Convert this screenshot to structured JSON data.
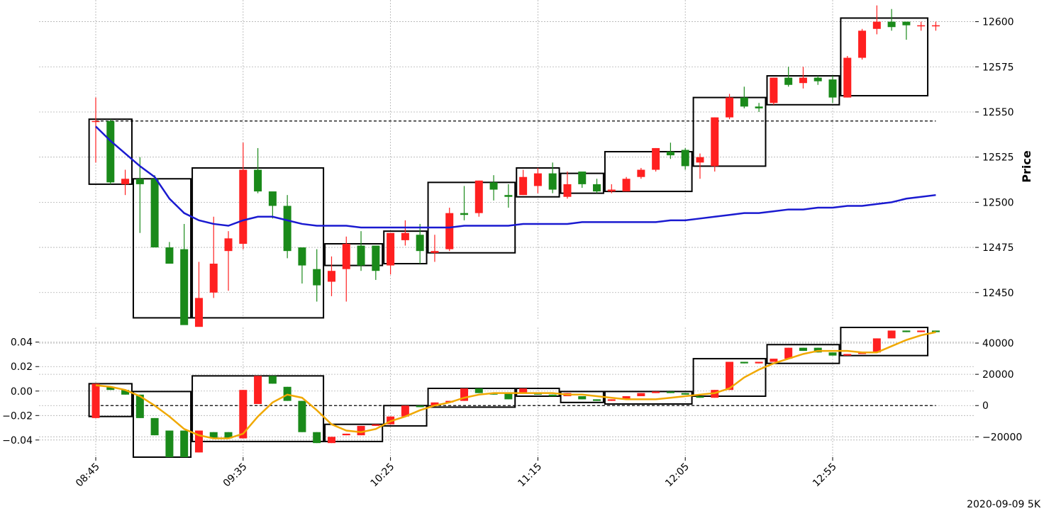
{
  "chart_data": [
    {
      "panel": "price",
      "type": "candlestick",
      "ylabel": "Price",
      "ylim": [
        12435,
        12612
      ],
      "yticks": [
        12450,
        12475,
        12500,
        12525,
        12550,
        12575,
        12600
      ],
      "ytick_labels": [
        "12450",
        "12475",
        "12500",
        "12525",
        "12550",
        "12575",
        "12600"
      ],
      "grid": true,
      "reference_line": 12545,
      "x_count": 58,
      "candles": [
        [
          12545,
          12545,
          12558,
          12522
        ],
        [
          12545,
          12511,
          12546,
          12510
        ],
        [
          12510,
          12513,
          12518,
          12504
        ],
        [
          12513,
          12510,
          12525,
          12483
        ],
        [
          12513,
          12475,
          12515,
          12475
        ],
        [
          12475,
          12466,
          12478,
          12472
        ],
        [
          12474,
          12432,
          12488,
          12437
        ],
        [
          12431,
          12447,
          12467,
          12440
        ],
        [
          12450,
          12466,
          12492,
          12447
        ],
        [
          12473,
          12480,
          12484,
          12451
        ],
        [
          12477,
          12518,
          12533,
          12474
        ],
        [
          12518,
          12506,
          12530,
          12505
        ],
        [
          12506,
          12498,
          12500,
          12491
        ],
        [
          12498,
          12473,
          12504,
          12469
        ],
        [
          12475,
          12465,
          12474,
          12455
        ],
        [
          12463,
          12454,
          12474,
          12445
        ],
        [
          12456,
          12462,
          12470,
          12448
        ],
        [
          12463,
          12477,
          12481,
          12445
        ],
        [
          12476,
          12465,
          12484,
          12462
        ],
        [
          12476,
          12462,
          12465,
          12457
        ],
        [
          12465,
          12483,
          12482,
          12460
        ],
        [
          12479,
          12483,
          12490,
          12476
        ],
        [
          12482,
          12473,
          12488,
          12466
        ],
        [
          12472,
          12473,
          12482,
          12467
        ],
        [
          12474,
          12494,
          12497,
          12473
        ],
        [
          12494,
          12493,
          12509,
          12490
        ],
        [
          12494,
          12512,
          12512,
          12492
        ],
        [
          12511,
          12507,
          12515,
          12501
        ],
        [
          12504,
          12503,
          12510,
          12497
        ],
        [
          12504,
          12514,
          12518,
          12504
        ],
        [
          12509,
          12516,
          12519,
          12505
        ],
        [
          12516,
          12507,
          12522,
          12505
        ],
        [
          12503,
          12510,
          12517,
          12502
        ],
        [
          12517,
          12510,
          12512,
          12508
        ],
        [
          12510,
          12506,
          12513,
          12505
        ],
        [
          12506,
          12507,
          12510,
          12505
        ],
        [
          12506,
          12513,
          12514,
          12506
        ],
        [
          12514,
          12518,
          12519,
          12513
        ],
        [
          12518,
          12530,
          12530,
          12517
        ],
        [
          12528,
          12526,
          12533,
          12524
        ],
        [
          12529,
          12520,
          12530,
          12518
        ],
        [
          12522,
          12525,
          12527,
          12513
        ],
        [
          12520,
          12547,
          12547,
          12517
        ],
        [
          12547,
          12558,
          12560,
          12546
        ],
        [
          12558,
          12553,
          12564,
          12552
        ],
        [
          12553,
          12552,
          12555,
          12550
        ],
        [
          12555,
          12569,
          12569,
          12554
        ],
        [
          12569,
          12565,
          12575,
          12564
        ],
        [
          12566,
          12569,
          12575,
          12563
        ],
        [
          12569,
          12567,
          12570,
          12565
        ],
        [
          12568,
          12558,
          12570,
          12555
        ],
        [
          12558,
          12580,
          12581,
          12558
        ],
        [
          12580,
          12595,
          12596,
          12579
        ],
        [
          12596,
          12600,
          12609,
          12593
        ],
        [
          12600,
          12597,
          12607,
          12595
        ],
        [
          12600,
          12598,
          12600,
          12590
        ],
        [
          12598,
          12598,
          12600,
          12595
        ],
        [
          12598,
          12598,
          12600,
          12595
        ]
      ],
      "moving_average": [
        12542,
        12534,
        12527,
        12520,
        12514,
        12502,
        12494,
        12490,
        12488,
        12487,
        12490,
        12492,
        12492,
        12490,
        12488,
        12487,
        12487,
        12487,
        12486,
        12486,
        12486,
        12486,
        12486,
        12486,
        12486,
        12487,
        12487,
        12487,
        12487,
        12488,
        12488,
        12488,
        12488,
        12489,
        12489,
        12489,
        12489,
        12489,
        12489,
        12490,
        12490,
        12491,
        12492,
        12493,
        12494,
        12494,
        12495,
        12496,
        12496,
        12497,
        12497,
        12498,
        12498,
        12499,
        12500,
        12502,
        12503,
        12504
      ],
      "colors": {
        "up": "#ff2020",
        "down": "#1a8a1a",
        "ma": "#1a1ad0",
        "box": "#000000"
      },
      "boxes": [
        {
          "x_from": 0,
          "x_to": 2,
          "low": 12510,
          "high": 12546
        },
        {
          "x_from": 3,
          "x_to": 6,
          "low": 12436,
          "high": 12513
        },
        {
          "x_from": 7,
          "x_to": 15,
          "low": 12436,
          "high": 12519
        },
        {
          "x_from": 16,
          "x_to": 19,
          "low": 12465,
          "high": 12477
        },
        {
          "x_from": 20,
          "x_to": 22,
          "low": 12466,
          "high": 12484
        },
        {
          "x_from": 23,
          "x_to": 28,
          "low": 12472,
          "high": 12511
        },
        {
          "x_from": 29,
          "x_to": 31,
          "low": 12503,
          "high": 12519
        },
        {
          "x_from": 32,
          "x_to": 34,
          "low": 12505,
          "high": 12516
        },
        {
          "x_from": 35,
          "x_to": 40,
          "low": 12506,
          "high": 12528
        },
        {
          "x_from": 41,
          "x_to": 45,
          "low": 12520,
          "high": 12558
        },
        {
          "x_from": 46,
          "x_to": 50,
          "low": 12554,
          "high": 12570
        },
        {
          "x_from": 51,
          "x_to": 56,
          "low": 12559,
          "high": 12602
        }
      ]
    },
    {
      "panel": "indicator",
      "type": "candlestick",
      "left_ylim": [
        -0.054,
        0.052
      ],
      "left_yticks": [
        -0.04,
        -0.02,
        0.0,
        0.02,
        0.04
      ],
      "left_ytick_labels": [
        "−0.04",
        "−0.02",
        "0.00",
        "0.02",
        "0.04"
      ],
      "right_ylim": [
        -33000,
        50000
      ],
      "right_yticks": [
        -20000,
        0,
        20000,
        40000
      ],
      "right_ytick_labels": [
        "−20000",
        "0",
        "20000",
        "40000"
      ],
      "grid": true,
      "reference_line": 0,
      "candles": [
        [
          -8000,
          14000,
          14000,
          -8000
        ],
        [
          12000,
          10000,
          12000,
          10000
        ],
        [
          10000,
          7000,
          10000,
          7000
        ],
        [
          7000,
          -8000,
          7000,
          -8000
        ],
        [
          -8000,
          -19000,
          -8000,
          -19000
        ],
        [
          -16000,
          -33000,
          -16000,
          -33000
        ],
        [
          -16000,
          -33000,
          -16000,
          -33000
        ],
        [
          -30000,
          -16000,
          -16000,
          -30000
        ],
        [
          -17000,
          -21000,
          -17000,
          -21000
        ],
        [
          -17000,
          -21000,
          -17000,
          -21000
        ],
        [
          -21000,
          10000,
          10000,
          -21000
        ],
        [
          1000,
          19000,
          19000,
          1000
        ],
        [
          19000,
          14000,
          19000,
          14000
        ],
        [
          12000,
          3000,
          12000,
          3000
        ],
        [
          3000,
          -17000,
          3000,
          -17000
        ],
        [
          -17000,
          -24000,
          -17000,
          -24000
        ],
        [
          -24000,
          -20000,
          -20000,
          -24000
        ],
        [
          -19000,
          -18000,
          -18000,
          -19000
        ],
        [
          -19000,
          -13000,
          -13000,
          -19000
        ],
        [
          -13000,
          -12000,
          -12000,
          -13000
        ],
        [
          -12000,
          -7000,
          -7000,
          -12000
        ],
        [
          -7000,
          0,
          0,
          -7000
        ],
        [
          0,
          -1000,
          0,
          -1000
        ],
        [
          0,
          2000,
          2000,
          0
        ],
        [
          2000,
          3000,
          3000,
          2000
        ],
        [
          3000,
          11000,
          11000,
          3000
        ],
        [
          11000,
          8000,
          11000,
          8000
        ],
        [
          8000,
          7000,
          8000,
          7000
        ],
        [
          8000,
          4000,
          8000,
          4000
        ],
        [
          8000,
          11000,
          11000,
          8000
        ],
        [
          8000,
          7000,
          8000,
          7000
        ],
        [
          7000,
          6000,
          7000,
          6000
        ],
        [
          6000,
          8000,
          8000,
          6000
        ],
        [
          6000,
          4000,
          6000,
          4000
        ],
        [
          4000,
          3000,
          4000,
          3000
        ],
        [
          3000,
          4000,
          4000,
          3000
        ],
        [
          4000,
          6000,
          6000,
          4000
        ],
        [
          6000,
          8000,
          8000,
          6000
        ],
        [
          8000,
          9000,
          9000,
          8000
        ],
        [
          9000,
          8000,
          9000,
          8000
        ],
        [
          8000,
          7000,
          8000,
          7000
        ],
        [
          6000,
          5000,
          6000,
          5000
        ],
        [
          5000,
          10000,
          10000,
          5000
        ],
        [
          10000,
          28000,
          28000,
          10000
        ],
        [
          28000,
          27000,
          28000,
          27000
        ],
        [
          27000,
          28000,
          28000,
          27000
        ],
        [
          28000,
          30000,
          30000,
          28000
        ],
        [
          30000,
          37000,
          37000,
          30000
        ],
        [
          37000,
          35000,
          37000,
          35000
        ],
        [
          37000,
          34000,
          37000,
          34000
        ],
        [
          34000,
          32000,
          34000,
          32000
        ],
        [
          32000,
          33000,
          33000,
          32000
        ],
        [
          33000,
          34000,
          34000,
          33000
        ],
        [
          34000,
          43000,
          43000,
          34000
        ],
        [
          43000,
          48000,
          48000,
          43000
        ],
        [
          48000,
          47000,
          48000,
          47000
        ],
        [
          47000,
          48000,
          48000,
          47000
        ],
        [
          48000,
          47000,
          48000,
          47000
        ]
      ],
      "moving_average": [
        13000,
        12000,
        10000,
        6000,
        0,
        -7000,
        -15000,
        -19000,
        -21000,
        -21000,
        -18000,
        -7000,
        2000,
        7000,
        5000,
        -3000,
        -12000,
        -16000,
        -17000,
        -15000,
        -10000,
        -7000,
        -3000,
        0,
        2000,
        5000,
        7000,
        8000,
        8000,
        8000,
        8000,
        8000,
        7000,
        7000,
        6000,
        5000,
        4000,
        4000,
        4000,
        5000,
        6000,
        7000,
        8000,
        11000,
        18000,
        23000,
        27000,
        30000,
        33000,
        35000,
        35000,
        35000,
        34000,
        34000,
        38000,
        42000,
        45000,
        47000
      ],
      "colors": {
        "up": "#ff2020",
        "down": "#1a8a1a",
        "ma": "#f0a800",
        "box": "#000000"
      },
      "boxes": [
        {
          "x_from": 0,
          "x_to": 2,
          "low": -7000,
          "high": 14000
        },
        {
          "x_from": 3,
          "x_to": 6,
          "low": -33000,
          "high": 9000
        },
        {
          "x_from": 7,
          "x_to": 15,
          "low": -23000,
          "high": 19000
        },
        {
          "x_from": 16,
          "x_to": 19,
          "low": -23000,
          "high": -12000
        },
        {
          "x_from": 20,
          "x_to": 22,
          "low": -13000,
          "high": 0
        },
        {
          "x_from": 23,
          "x_to": 28,
          "low": -1000,
          "high": 11000
        },
        {
          "x_from": 29,
          "x_to": 31,
          "low": 6000,
          "high": 11000
        },
        {
          "x_from": 32,
          "x_to": 34,
          "low": 2000,
          "high": 9000
        },
        {
          "x_from": 35,
          "x_to": 40,
          "low": 1000,
          "high": 9000
        },
        {
          "x_from": 41,
          "x_to": 45,
          "low": 6000,
          "high": 30000
        },
        {
          "x_from": 46,
          "x_to": 50,
          "low": 27000,
          "high": 39000
        },
        {
          "x_from": 51,
          "x_to": 56,
          "low": 32000,
          "high": 50000
        }
      ]
    }
  ],
  "x_axis": {
    "tick_indices": [
      0,
      10,
      20,
      30,
      40,
      50
    ],
    "tick_labels": [
      "08:45",
      "09:35",
      "10:25",
      "11:15",
      "12:05",
      "12:55"
    ]
  },
  "footer_label": "2020-09-09 5K"
}
